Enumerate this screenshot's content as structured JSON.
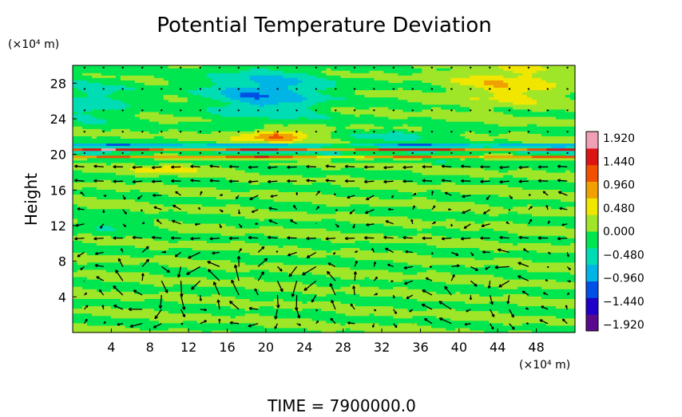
{
  "chart_data": {
    "type": "heatmap",
    "title": "Potential Temperature Deviation",
    "xlabel": "",
    "ylabel": "Height",
    "x_unit": "(×10⁴ m)",
    "y_unit": "(×10⁴ m)",
    "xlim": [
      0,
      52
    ],
    "ylim": [
      0,
      30
    ],
    "x_ticks": [
      4,
      8,
      12,
      16,
      20,
      24,
      28,
      32,
      36,
      40,
      44,
      48
    ],
    "y_ticks": [
      4,
      8,
      12,
      16,
      20,
      24,
      28
    ],
    "colorbar": {
      "range": [
        -1.92,
        1.92
      ],
      "ticks": [
        "1.920",
        "1.440",
        "0.960",
        "0.480",
        "0.000",
        "−0.480",
        "−0.960",
        "−1.440",
        "−1.920"
      ],
      "colors": [
        "#5a0a8c",
        "#1e00c8",
        "#0050e6",
        "#00b4e6",
        "#00dcb4",
        "#00e650",
        "#a0e628",
        "#f0e600",
        "#f0a000",
        "#f05000",
        "#dc1414",
        "#f0a0b4"
      ]
    },
    "field": {
      "description": "Mostly near-zero (green) field with a strong alternating band near height 20-22, warm blob near x 20-24 at height 22, cool teal region near x 16-24 at heights 24-28 and yellowish region near x 40-48 at heights 26-30.",
      "bands": [
        {
          "y": 21.0,
          "value": -1.4
        },
        {
          "y": 20.6,
          "value": 1.6
        },
        {
          "y": 20.2,
          "value": -1.0
        },
        {
          "y": 19.8,
          "value": 1.2
        },
        {
          "y": 19.3,
          "value": -0.2
        }
      ]
    },
    "vectors": "Wind arrows overlaid on a grid; circulation cells near x 8, 14, 20, 40, 46 in the lower 20 km; small arrows above 22 km."
  },
  "footer": {
    "time_label": "TIME  =  7900000.0"
  }
}
